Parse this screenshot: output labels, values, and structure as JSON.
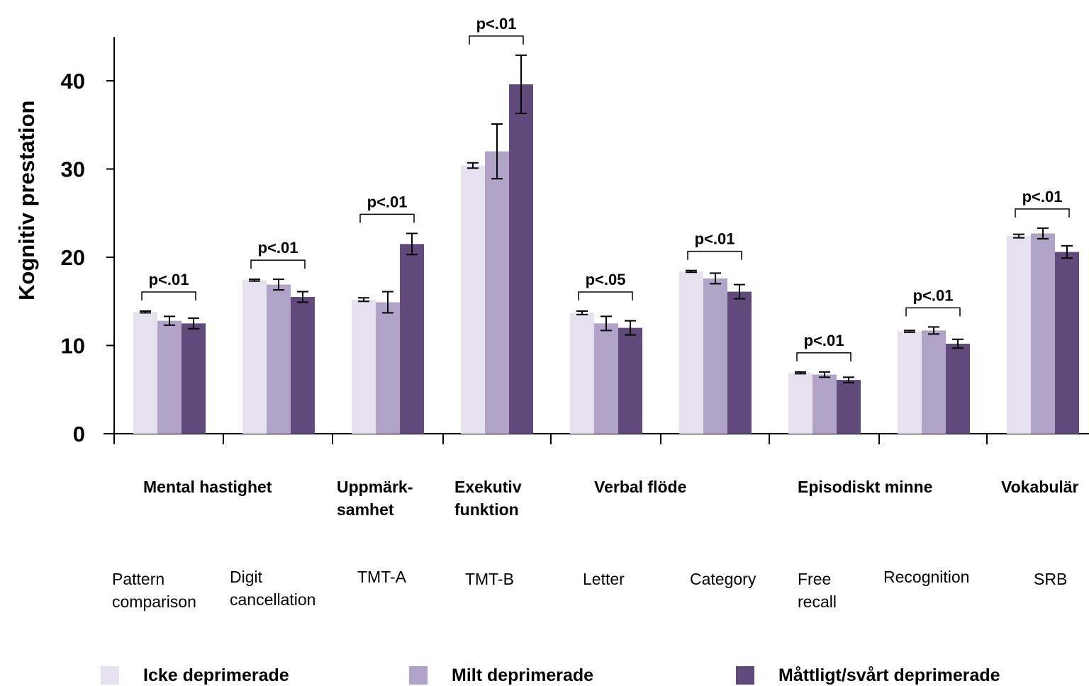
{
  "chart_data": {
    "type": "bar",
    "ylabel": "Kognitiv prestation",
    "ylim": [
      0,
      45
    ],
    "yticks": [
      "0",
      "10",
      "20",
      "30",
      "40"
    ],
    "domains": [
      {
        "label": "Mental hastighet"
      },
      {
        "label": "Uppmärk- samhet"
      },
      {
        "label": "Exekutiv funktion"
      },
      {
        "label": "Verbal flöde"
      },
      {
        "label": "Episodiskt minne"
      },
      {
        "label": "Vokabulär"
      }
    ],
    "categories": [
      "Pattern comparison",
      "Digit cancellation",
      "TMT-A",
      "TMT-B",
      "Letter",
      "Category",
      "Free recall",
      "Recognition",
      "SRB"
    ],
    "series": [
      {
        "name": "Icke deprimerade",
        "color": "#e6e1ee",
        "values": [
          13.8,
          17.4,
          15.2,
          30.4,
          13.7,
          18.4,
          6.9,
          11.6,
          22.4
        ],
        "errors": [
          0.1,
          0.1,
          0.2,
          0.3,
          0.2,
          0.1,
          0.1,
          0.1,
          0.2
        ]
      },
      {
        "name": "Milt deprimerade",
        "color": "#b1a2c8",
        "values": [
          12.8,
          16.9,
          14.9,
          32.0,
          12.5,
          17.6,
          6.7,
          11.7,
          22.7
        ],
        "errors": [
          0.5,
          0.6,
          1.2,
          3.1,
          0.8,
          0.6,
          0.3,
          0.4,
          0.6
        ]
      },
      {
        "name": "Måttligt/svårt deprimerade",
        "color": "#604a7b",
        "values": [
          12.5,
          15.5,
          21.5,
          39.6,
          12.0,
          16.1,
          6.1,
          10.2,
          20.6
        ],
        "errors": [
          0.6,
          0.6,
          1.2,
          3.3,
          0.8,
          0.8,
          0.3,
          0.5,
          0.7
        ]
      }
    ],
    "annotations": [
      "p<.01",
      "p<.01",
      "p<.01",
      "p<.01",
      "p<.05",
      "p<.01",
      "p<.01",
      "p<.01",
      "p<.01"
    ]
  }
}
